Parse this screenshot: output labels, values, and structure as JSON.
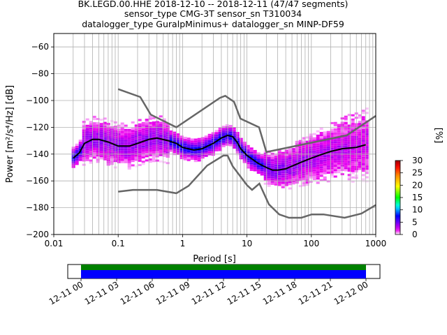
{
  "title_lines": [
    "BK.LEGD.00.HHE   2018-12-10 -- 2018-12-11  (47/47 segments)",
    "sensor_type CMG-3T sensor_sn T310034",
    "datalogger_type GuralpMinimus+ datalogger_sn MINP-DF59"
  ],
  "chart_data": [
    {
      "type": "heatmap",
      "name": "ppsd",
      "xlabel": "Period [s]",
      "ylabel": "Power [m²/s⁴/Hz] [dB]",
      "xscale": "log",
      "xlim": [
        0.01,
        1000
      ],
      "ylim": [
        -200,
        -50
      ],
      "x_ticks": [
        0.01,
        0.1,
        1,
        10,
        100,
        1000
      ],
      "x_tick_labels": [
        "0.01",
        "0.1",
        "1",
        "10",
        "100",
        "1000"
      ],
      "y_ticks": [
        -200,
        -180,
        -160,
        -140,
        -120,
        -100,
        -80,
        -60
      ],
      "y_tick_labels": [
        "−200",
        "−180",
        "−160",
        "−140",
        "−120",
        "−100",
        "−80",
        "−60"
      ],
      "grid": true,
      "colorbar": {
        "label": "[%]",
        "range": [
          0,
          30
        ],
        "ticks": [
          0,
          5,
          10,
          15,
          20,
          25,
          30
        ],
        "tick_labels": [
          "0",
          "5",
          "10",
          "15",
          "20",
          "25",
          "30"
        ],
        "colormap": [
          "#ffffff",
          "#ee00ee",
          "#0000ff",
          "#00ffff",
          "#00ff00",
          "#ffff00",
          "#ff8800",
          "#ff0000",
          "#990000"
        ]
      },
      "mean_curve": {
        "color": "#000000",
        "x": [
          0.02,
          0.025,
          0.03,
          0.04,
          0.05,
          0.07,
          0.1,
          0.15,
          0.2,
          0.3,
          0.4,
          0.6,
          0.8,
          1,
          1.5,
          2,
          3,
          4,
          5,
          6,
          7,
          8,
          10,
          15,
          20,
          25,
          30,
          40,
          50,
          70,
          100,
          150,
          200,
          300,
          500,
          700
        ],
        "y": [
          -143,
          -139,
          -132,
          -129,
          -129,
          -131,
          -134,
          -134,
          -132,
          -129,
          -128,
          -130,
          -132,
          -135,
          -137,
          -136,
          -132,
          -128,
          -126,
          -127,
          -131,
          -136,
          -141,
          -147,
          -150,
          -152,
          -152,
          -151,
          -149,
          -146,
          -143,
          -140,
          -138,
          -136,
          -135,
          -133
        ]
      },
      "noise_models": {
        "color": "#666666",
        "high": {
          "x": [
            0.1,
            0.22,
            0.32,
            0.8,
            3.8,
            4.6,
            6.3,
            7.9,
            15.4,
            20,
            354.8,
            1000
          ],
          "y": [
            -91.5,
            -97.4,
            -110.5,
            -120,
            -98,
            -96.5,
            -101,
            -113.5,
            -120,
            -138.5,
            -126,
            -111.5
          ]
        },
        "low": {
          "x": [
            0.1,
            0.17,
            0.4,
            0.8,
            1.24,
            2.4,
            4.3,
            5,
            6,
            10,
            12,
            15.6,
            21.9,
            31.6,
            45,
            70,
            101,
            154,
            328,
            600,
            1000
          ],
          "y": [
            -168,
            -166.7,
            -166.7,
            -169.2,
            -163.7,
            -148.6,
            -141.1,
            -141.1,
            -149,
            -163.2,
            -166.7,
            -162,
            -177.5,
            -185,
            -187.5,
            -187.5,
            -185,
            -185,
            -187.5,
            -184.4,
            -178
          ]
        }
      }
    },
    {
      "type": "timeline",
      "name": "data-coverage",
      "tick_labels": [
        "12-11 00",
        "12-11 03",
        "12-11 06",
        "12-11 09",
        "12-11 12",
        "12-11 15",
        "12-11 18",
        "12-11 21",
        "12-12 00"
      ],
      "coverage_color": "#0000ff",
      "processed_color": "#008000"
    }
  ]
}
